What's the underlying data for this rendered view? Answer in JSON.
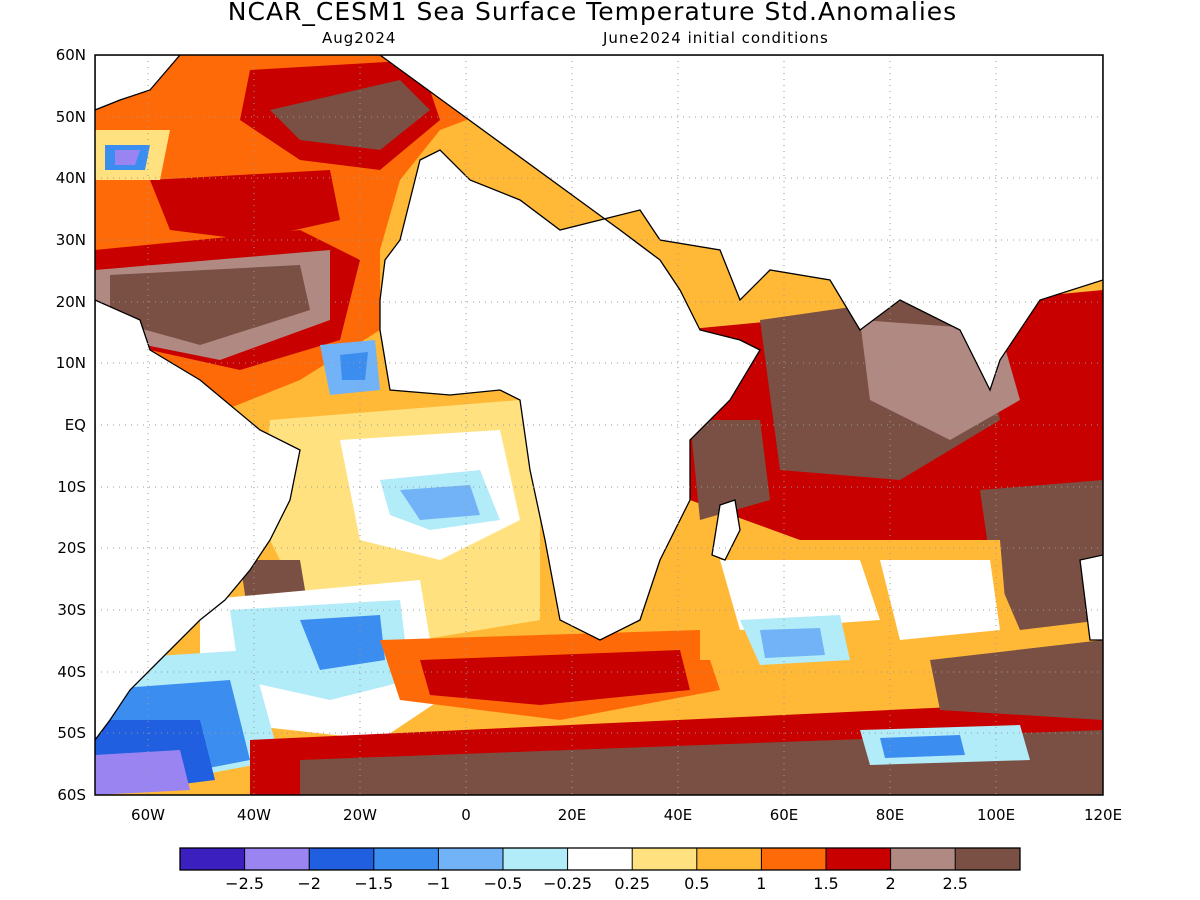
{
  "title": "NCAR_CESM1 Sea Surface Temperature Std.Anomalies",
  "subtitle_left": "Aug2024",
  "subtitle_right": "June2024 initial conditions",
  "lat_labels": [
    "60N",
    "50N",
    "40N",
    "30N",
    "20N",
    "10N",
    "EQ",
    "10S",
    "20S",
    "30S",
    "40S",
    "50S",
    "60S"
  ],
  "lon_labels": [
    "60W",
    "40W",
    "20W",
    "0",
    "20E",
    "40E",
    "60E",
    "80E",
    "100E",
    "120E"
  ],
  "colorbar": {
    "colors": [
      "#3b1fbf",
      "#9a84f2",
      "#1f5fe0",
      "#3b8ef0",
      "#72b2f7",
      "#b2ecf9",
      "#ffffff",
      "#ffe27f",
      "#ffb937",
      "#ff6a08",
      "#c80000",
      "#b08a82",
      "#7a5044"
    ],
    "labels": [
      "−2.5",
      "−2",
      "−1.5",
      "−1",
      "−0.5",
      "−0.25",
      "0.25",
      "0.5",
      "1",
      "1.5",
      "2",
      "2.5"
    ]
  }
}
